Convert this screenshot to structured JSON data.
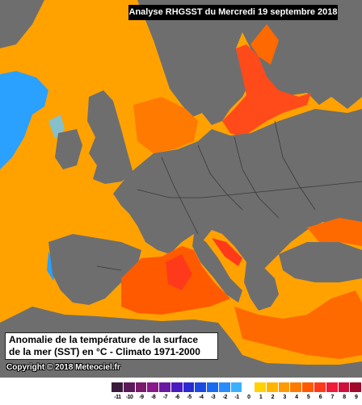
{
  "header": {
    "title": "Analyse RHGSST  du Mercredi 19 septembre 2018"
  },
  "caption": {
    "line1": "Anomalie de la température de la surface",
    "line2": "de la mer (SST) en °C - Climato 1971-2000"
  },
  "copyright": "Copyright © 2018 Meteociel.fr",
  "colors": {
    "sea_base": "#ffa200",
    "warm_anomaly": "#ff6a00",
    "hot_anomaly": "#ff3a1a",
    "cold_anomaly": "#2aa0ff",
    "land": "#6e6e6e",
    "borders": "#3a3a3a"
  },
  "legend": {
    "ticks": [
      "-11",
      "-10",
      "-9",
      "-8",
      "-7",
      "-6",
      "-5",
      "-4",
      "-3",
      "-2",
      "-1",
      "0",
      "1",
      "2",
      "3",
      "4",
      "5",
      "6",
      "7",
      "8",
      "9"
    ],
    "colors": [
      "#3a1a3a",
      "#5a1a5a",
      "#7a1a6a",
      "#8a1a8a",
      "#6a1aa0",
      "#4a1ac0",
      "#2a2ad0",
      "#1a4ae0",
      "#1a6af0",
      "#2a8aff",
      "#3ab0ff",
      "#ffffff",
      "#ffd200",
      "#ffb400",
      "#ff9a00",
      "#ff7a00",
      "#ff5a00",
      "#ff3a1a",
      "#f01a3a",
      "#d0103a",
      "#a00a2a"
    ]
  }
}
